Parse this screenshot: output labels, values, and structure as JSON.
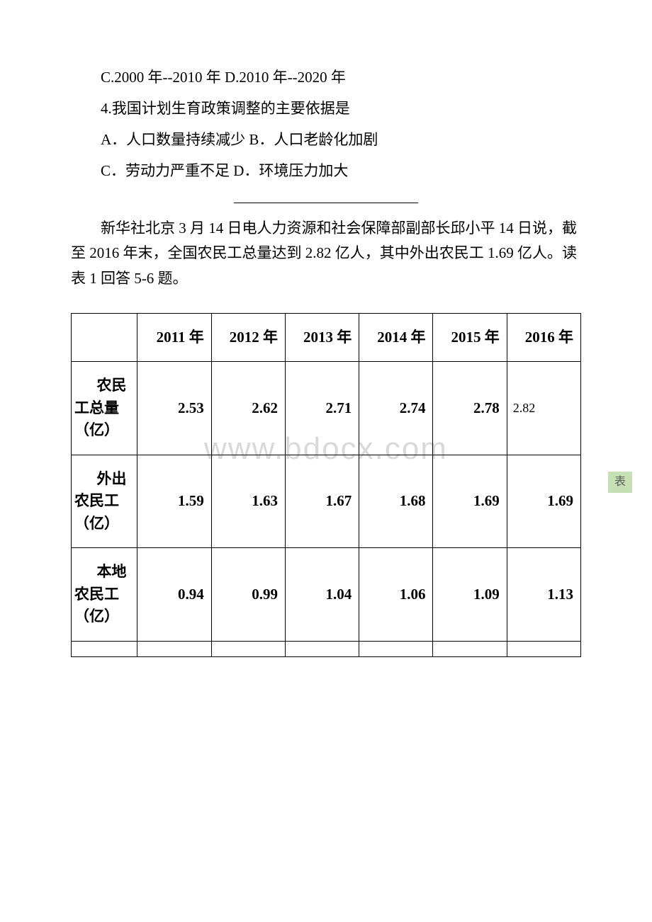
{
  "text": {
    "p1": "C.2000 年--2010 年 D.2010 年--2020 年",
    "p2": "4.我国计划生育政策调整的主要依据是",
    "p3": "A．人口数量持续减少 B．人口老龄化加剧",
    "p4": "C．劳动力严重不足 D．环境压力加大",
    "intro": "新华社北京 3 月 14 日电人力资源和社会保障部副部长邱小平 14 日说，截至 2016 年末，全国农民工总量达到 2.82 亿人，其中外出农民工 1.69 亿人。读表 1 回答 5-6 题。"
  },
  "watermark": "www.bdocx.com",
  "badge": "表",
  "table": {
    "headers": [
      "",
      "2011 年",
      "2012 年",
      "2013 年",
      "2014 年",
      "2015 年",
      "2016 年"
    ],
    "rows": [
      {
        "label": "农民工总量（亿）",
        "cells": [
          "2.53",
          "2.62",
          "2.71",
          "2.74",
          "2.78",
          "2.82"
        ]
      },
      {
        "label": "外出农民工（亿）",
        "cells": [
          "1.59",
          "1.63",
          "1.67",
          "1.68",
          "1.69",
          "1.69"
        ]
      },
      {
        "label": "本地农民工（亿）",
        "cells": [
          "0.94",
          "0.99",
          "1.04",
          "1.06",
          "1.09",
          "1.13"
        ]
      }
    ]
  },
  "styling": {
    "body_width": 920,
    "body_height": 1302,
    "background_color": "#ffffff",
    "text_color": "#000000",
    "font_size": 21,
    "font_family": "SimSun",
    "watermark_color": "#d9d9d9",
    "watermark_fontsize": 44,
    "badge_bg": "#c5e0b4",
    "badge_color": "#595959",
    "table_border_color": "#000000",
    "table_border_width": 1.5,
    "hr_width": 260,
    "line_height": 1.9
  }
}
